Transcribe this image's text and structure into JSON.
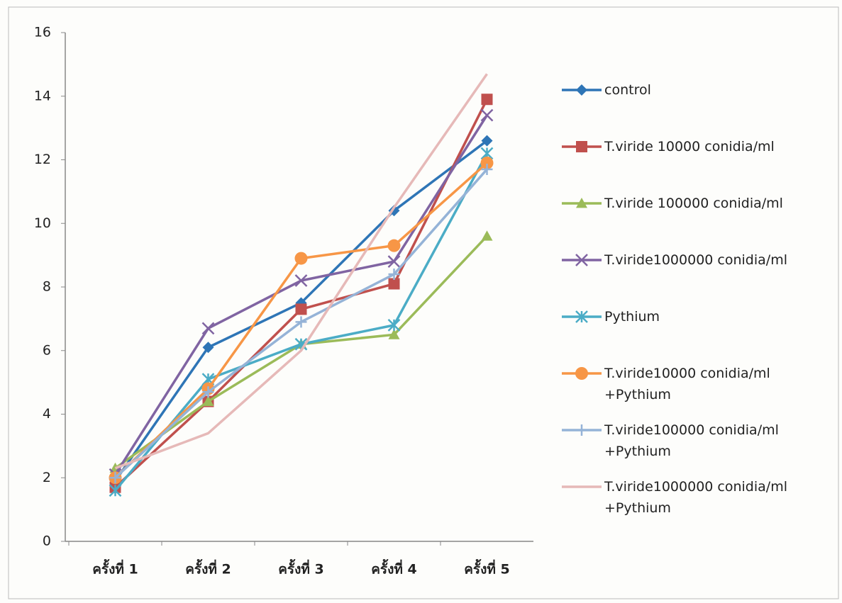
{
  "chart_data": {
    "type": "line",
    "categories": [
      "ครั้งที่ 1",
      "ครั้งที่ 2",
      "ครั้งที่ 3",
      "ครั้งที่ 4",
      "ครั้งที่ 5"
    ],
    "series": [
      {
        "name": "control",
        "color": "#2e75b6",
        "marker": "diamond",
        "values": [
          1.9,
          6.1,
          7.5,
          10.4,
          12.6
        ]
      },
      {
        "name": "T.viride 10000 conidia/ml",
        "color": "#c0504d",
        "marker": "square",
        "values": [
          1.7,
          4.4,
          7.3,
          8.1,
          13.9
        ]
      },
      {
        "name": "T.viride 100000 conidia/ml",
        "color": "#9bbb59",
        "marker": "triangle",
        "values": [
          2.3,
          4.4,
          6.2,
          6.5,
          9.6
        ]
      },
      {
        "name": "T.viride1000000 conidia/ml",
        "color": "#8064a2",
        "marker": "x",
        "values": [
          2.1,
          6.7,
          8.2,
          8.8,
          13.4
        ]
      },
      {
        "name": "Pythium",
        "color": "#4bacc6",
        "marker": "star",
        "values": [
          1.6,
          5.1,
          6.2,
          6.8,
          12.2
        ]
      },
      {
        "name": "T.viride10000 conidia/ml +Pythium",
        "color": "#f79646",
        "marker": "circle",
        "values": [
          2.0,
          4.8,
          8.9,
          9.3,
          11.9
        ]
      },
      {
        "name": "T.viride100000 conidia/ml +Pythium",
        "color": "#95b3d7",
        "marker": "plus",
        "values": [
          2.0,
          4.7,
          6.9,
          8.4,
          11.7
        ]
      },
      {
        "name": "T.viride1000000 conidia/ml +Pythium",
        "color": "#e6b9b8",
        "marker": "none",
        "values": [
          2.3,
          3.4,
          6.0,
          10.5,
          14.7
        ]
      }
    ],
    "ylim": [
      0,
      16
    ],
    "yticks": [
      0,
      2,
      4,
      6,
      8,
      10,
      12,
      14,
      16
    ],
    "grid": false,
    "legend": "right"
  }
}
